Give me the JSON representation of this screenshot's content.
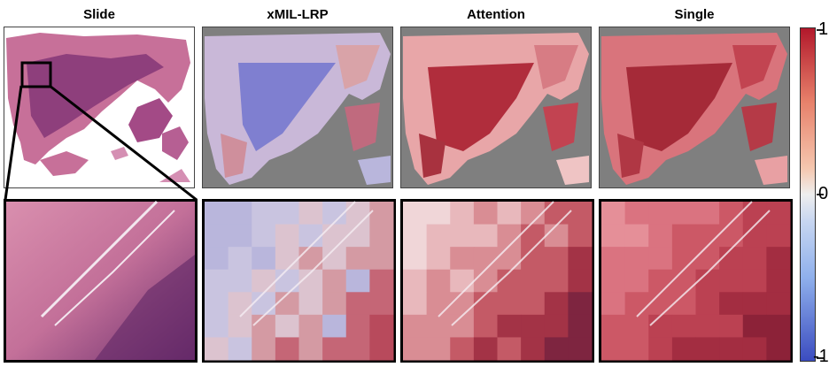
{
  "titles": [
    "Slide",
    "xMIL-LRP",
    "Attention",
    "Single"
  ],
  "colorbar": {
    "labels_visible": [
      "1",
      "0",
      "-1"
    ],
    "colors": [
      "#b2182b",
      "#f4a582",
      "#f7f7f7",
      "#92c5de",
      "#3b4cc0"
    ]
  },
  "colors": {
    "background_grey": "#7f7f7f",
    "tissue_pink": "#c9789e",
    "tissue_dark": "#8a3a76",
    "heat_red": "#c0303a",
    "heat_blue": "#5a62c8"
  }
}
